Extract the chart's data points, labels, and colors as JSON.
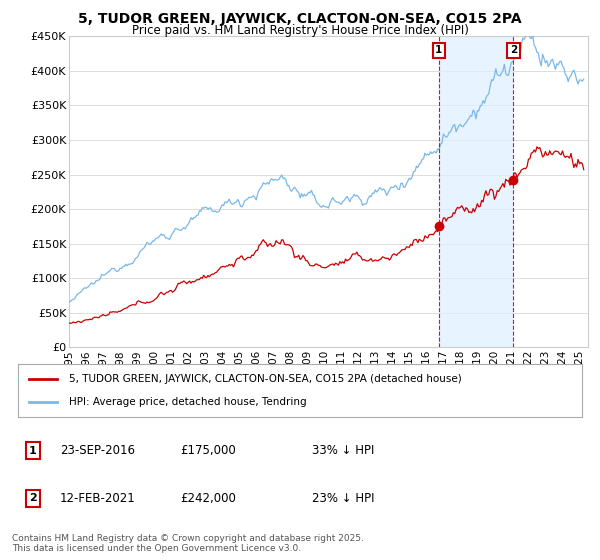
{
  "title": "5, TUDOR GREEN, JAYWICK, CLACTON-ON-SEA, CO15 2PA",
  "subtitle": "Price paid vs. HM Land Registry's House Price Index (HPI)",
  "ylim": [
    0,
    450000
  ],
  "yticks": [
    0,
    50000,
    100000,
    150000,
    200000,
    250000,
    300000,
    350000,
    400000,
    450000
  ],
  "ytick_labels": [
    "£0",
    "£50K",
    "£100K",
    "£150K",
    "£200K",
    "£250K",
    "£300K",
    "£350K",
    "£400K",
    "£450K"
  ],
  "xlim_start": 1995.0,
  "xlim_end": 2025.5,
  "sale1_x": 2016.728,
  "sale1_y": 175000,
  "sale1_label": "1",
  "sale1_date": "23-SEP-2016",
  "sale1_price": "£175,000",
  "sale1_note": "33% ↓ HPI",
  "sale2_x": 2021.115,
  "sale2_y": 242000,
  "sale2_label": "2",
  "sale2_date": "12-FEB-2021",
  "sale2_price": "£242,000",
  "sale2_note": "23% ↓ HPI",
  "hpi_color": "#7ab8e8",
  "property_color": "#cc0000",
  "marker_box_color": "#cc0000",
  "vline_color": "#cc0000",
  "shade_color": "#ddeeff",
  "legend_label_property": "5, TUDOR GREEN, JAYWICK, CLACTON-ON-SEA, CO15 2PA (detached house)",
  "legend_label_hpi": "HPI: Average price, detached house, Tendring",
  "footnote": "Contains HM Land Registry data © Crown copyright and database right 2025.\nThis data is licensed under the Open Government Licence v3.0.",
  "background_color": "#ffffff",
  "grid_color": "#dddddd"
}
